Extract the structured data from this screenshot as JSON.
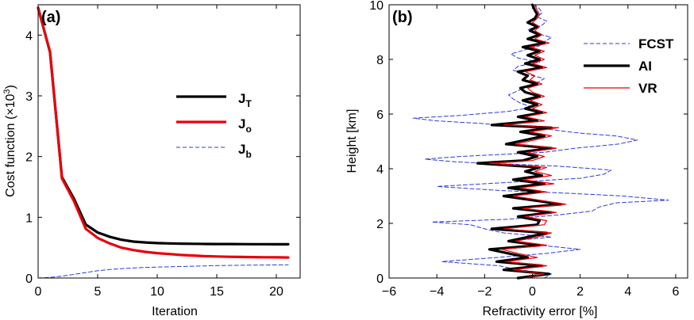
{
  "chart_data": [
    {
      "panel_label": "(a)",
      "type": "line",
      "xlabel": "Iteration",
      "ylabel_main": "Cost function (×10",
      "ylabel_sup": "3",
      "ylabel_end": ")",
      "xlim": [
        0,
        22
      ],
      "ylim": [
        0,
        4.5
      ],
      "xticks": [
        0,
        5,
        10,
        15,
        20
      ],
      "yticks": [
        0,
        1,
        2,
        3,
        4
      ],
      "legend_position": "top-right",
      "legend": [
        {
          "main": "J",
          "sub": "T",
          "color": "#000000",
          "width": 3.2,
          "dash": ""
        },
        {
          "main": "J",
          "sub": "o",
          "color": "#e8000b",
          "width": 3.2,
          "dash": ""
        },
        {
          "main": "J",
          "sub": "b",
          "color": "#2b3bd6",
          "width": 1,
          "dash": "5,3"
        }
      ],
      "series": [
        {
          "color": "#000000",
          "width": 3.2,
          "dash": "",
          "x": [
            0,
            1,
            2,
            3,
            4,
            5,
            6,
            7,
            8,
            9,
            10,
            11,
            12,
            13,
            14,
            15,
            16,
            17,
            18,
            19,
            20,
            21
          ],
          "y": [
            4.45,
            3.72,
            1.66,
            1.31,
            0.88,
            0.75,
            0.68,
            0.63,
            0.6,
            0.585,
            0.575,
            0.57,
            0.566,
            0.563,
            0.561,
            0.56,
            0.559,
            0.558,
            0.557,
            0.557,
            0.556,
            0.556
          ]
        },
        {
          "color": "#e8000b",
          "width": 3.2,
          "dash": "",
          "x": [
            0,
            1,
            2,
            3,
            4,
            5,
            6,
            7,
            8,
            9,
            10,
            11,
            12,
            13,
            14,
            15,
            16,
            17,
            18,
            19,
            20,
            21
          ],
          "y": [
            4.45,
            3.72,
            1.64,
            1.27,
            0.81,
            0.66,
            0.57,
            0.5,
            0.46,
            0.43,
            0.41,
            0.395,
            0.38,
            0.37,
            0.36,
            0.355,
            0.35,
            0.347,
            0.345,
            0.342,
            0.34,
            0.338
          ]
        },
        {
          "color": "#2b3bd6",
          "width": 1,
          "dash": "5,3",
          "x": [
            0,
            1,
            2,
            3,
            4,
            5,
            6,
            7,
            8,
            9,
            10,
            11,
            12,
            13,
            14,
            15,
            16,
            17,
            18,
            19,
            20,
            21
          ],
          "y": [
            0,
            0.01,
            0.03,
            0.06,
            0.09,
            0.12,
            0.14,
            0.155,
            0.165,
            0.175,
            0.18,
            0.185,
            0.19,
            0.195,
            0.2,
            0.205,
            0.208,
            0.21,
            0.212,
            0.214,
            0.216,
            0.218
          ]
        }
      ]
    },
    {
      "panel_label": "(b)",
      "type": "line",
      "xlabel": "Refractivity error [%]",
      "ylabel": "Height [km]",
      "xlim": [
        -6,
        6.5
      ],
      "ylim": [
        0,
        10
      ],
      "xticks": [
        -6,
        -4,
        -2,
        0,
        2,
        4,
        6
      ],
      "xtick_labels": [
        "−6",
        "−4",
        "−2",
        "0",
        "2",
        "4",
        "6"
      ],
      "yticks": [
        0,
        2,
        4,
        6,
        8,
        10
      ],
      "legend_position": "top-right",
      "legend": [
        {
          "label": "FCST",
          "color": "#2b3bd6",
          "width": 1,
          "dash": "5,3"
        },
        {
          "label": "AI",
          "color": "#000000",
          "width": 3.2,
          "dash": ""
        },
        {
          "label": "VR",
          "color": "#e8000b",
          "width": 1.2,
          "dash": ""
        }
      ],
      "series": [
        {
          "color": "#2b3bd6",
          "width": 1,
          "dash": "5,3",
          "y": [
            0.0,
            0.15,
            0.3,
            0.45,
            0.6,
            0.75,
            0.9,
            1.05,
            1.2,
            1.35,
            1.5,
            1.65,
            1.8,
            1.95,
            2.05,
            2.15,
            2.3,
            2.45,
            2.6,
            2.75,
            2.85,
            3.0,
            3.1,
            3.2,
            3.35,
            3.5,
            3.65,
            3.8,
            3.95,
            4.1,
            4.25,
            4.35,
            4.45,
            4.6,
            4.75,
            4.9,
            5.05,
            5.2,
            5.3,
            5.45,
            5.55,
            5.65,
            5.75,
            5.85,
            5.95,
            6.1,
            6.25,
            6.4,
            6.55,
            6.7,
            6.85,
            7.0,
            7.15,
            7.3,
            7.45,
            7.6,
            7.75,
            7.9,
            8.05,
            8.2,
            8.35,
            8.5,
            8.65,
            8.8,
            8.95,
            9.1,
            9.25,
            9.4,
            9.55,
            9.7,
            9.85,
            10.0
          ],
          "x": [
            0.5,
            0.8,
            -0.6,
            -1.4,
            -3.8,
            -1.5,
            0.6,
            2.0,
            0.3,
            -1.0,
            0.8,
            -1.2,
            -2.0,
            -2.6,
            -4.2,
            -1.0,
            1.0,
            2.5,
            2.8,
            3.5,
            5.7,
            3.8,
            1.6,
            -1.3,
            -4.0,
            -1.0,
            2.0,
            3.0,
            3.3,
            1.0,
            -3.2,
            -4.5,
            -3.0,
            0.5,
            1.8,
            3.6,
            4.4,
            3.5,
            2.0,
            0.6,
            -0.8,
            -2.0,
            -4.0,
            -5.0,
            -3.0,
            -1.0,
            0.0,
            -0.5,
            -0.8,
            -1.0,
            -0.6,
            -0.3,
            0.2,
            0.5,
            -0.2,
            -0.8,
            -0.6,
            0.3,
            -0.6,
            -0.9,
            -0.3,
            0.3,
            0.5,
            0.8,
            0.2,
            -0.2,
            0.4,
            0.6,
            0.2,
            0.4,
            0.3,
            0.1
          ]
        },
        {
          "color": "#000000",
          "width": 3.2,
          "dash": "",
          "y": [
            0.0,
            0.15,
            0.3,
            0.45,
            0.6,
            0.75,
            0.9,
            1.05,
            1.2,
            1.35,
            1.5,
            1.65,
            1.8,
            1.95,
            2.1,
            2.25,
            2.4,
            2.55,
            2.7,
            2.85,
            3.0,
            3.15,
            3.3,
            3.45,
            3.6,
            3.75,
            3.9,
            4.05,
            4.2,
            4.3,
            4.45,
            4.6,
            4.75,
            4.9,
            5.05,
            5.2,
            5.35,
            5.5,
            5.6,
            5.75,
            5.9,
            6.05,
            6.2,
            6.35,
            6.5,
            6.65,
            6.8,
            6.95,
            7.1,
            7.25,
            7.4,
            7.55,
            7.7,
            7.85,
            8.0,
            8.15,
            8.3,
            8.45,
            8.6,
            8.75,
            8.9,
            9.05,
            9.2,
            9.35,
            9.5,
            9.65,
            9.8,
            10.0
          ],
          "x": [
            -0.6,
            0.7,
            -1.2,
            0.4,
            -1.5,
            -0.2,
            -1.0,
            -1.8,
            0.3,
            -1.0,
            -0.2,
            0.6,
            -1.7,
            0.2,
            0.3,
            -0.6,
            0.8,
            -0.8,
            1.2,
            0.0,
            -1.2,
            0.3,
            -1.0,
            0.5,
            -0.8,
            0.4,
            -0.3,
            0.3,
            -2.3,
            -0.4,
            0.2,
            -0.6,
            0.8,
            -1.1,
            -0.3,
            0.5,
            -0.5,
            0.8,
            -1.7,
            0.2,
            -0.6,
            0.4,
            -0.3,
            0.2,
            -0.4,
            0.3,
            -0.3,
            -0.5,
            0.2,
            -0.4,
            -0.2,
            -0.6,
            0.4,
            -0.3,
            0.3,
            -0.2,
            0.3,
            -0.4,
            0.5,
            -0.2,
            0.3,
            -0.1,
            0.2,
            -0.2,
            0.1,
            0.2,
            0.1,
            0.0
          ]
        },
        {
          "color": "#e8000b",
          "width": 1.2,
          "dash": "",
          "y": [
            0.0,
            0.15,
            0.3,
            0.45,
            0.6,
            0.75,
            0.9,
            1.05,
            1.2,
            1.35,
            1.5,
            1.65,
            1.8,
            1.95,
            2.1,
            2.25,
            2.4,
            2.55,
            2.7,
            2.85,
            3.0,
            3.15,
            3.3,
            3.45,
            3.6,
            3.75,
            3.9,
            4.05,
            4.2,
            4.3,
            4.45,
            4.6,
            4.75,
            4.9,
            5.05,
            5.2,
            5.35,
            5.5,
            5.6,
            5.75,
            5.9,
            6.05,
            6.2,
            6.35,
            6.5,
            6.65,
            6.8,
            6.95,
            7.1,
            7.25,
            7.4,
            7.55,
            7.7,
            7.85,
            8.0,
            8.15,
            8.3,
            8.45,
            8.6,
            8.75,
            8.9,
            9.05,
            9.2,
            9.35,
            9.5,
            9.65,
            9.8,
            10.0
          ],
          "x": [
            -0.3,
            0.5,
            -0.8,
            0.6,
            -1.1,
            0.2,
            -0.6,
            -1.3,
            0.6,
            -0.7,
            0.2,
            0.8,
            -1.2,
            0.5,
            0.6,
            -0.3,
            1.0,
            -0.4,
            1.4,
            0.3,
            -0.8,
            0.6,
            -0.5,
            0.9,
            -0.4,
            0.8,
            0.1,
            0.6,
            -1.8,
            0.0,
            0.5,
            -0.2,
            1.0,
            -0.7,
            0.1,
            0.8,
            -0.1,
            1.1,
            -1.2,
            0.5,
            -0.3,
            0.6,
            0.0,
            0.4,
            -0.1,
            0.5,
            0.0,
            -0.2,
            0.4,
            -0.1,
            0.1,
            -0.3,
            0.6,
            0.0,
            0.5,
            0.1,
            0.5,
            -0.1,
            0.7,
            0.1,
            0.4,
            0.1,
            0.3,
            0.0,
            0.2,
            0.3,
            0.2,
            0.1
          ]
        }
      ]
    }
  ]
}
